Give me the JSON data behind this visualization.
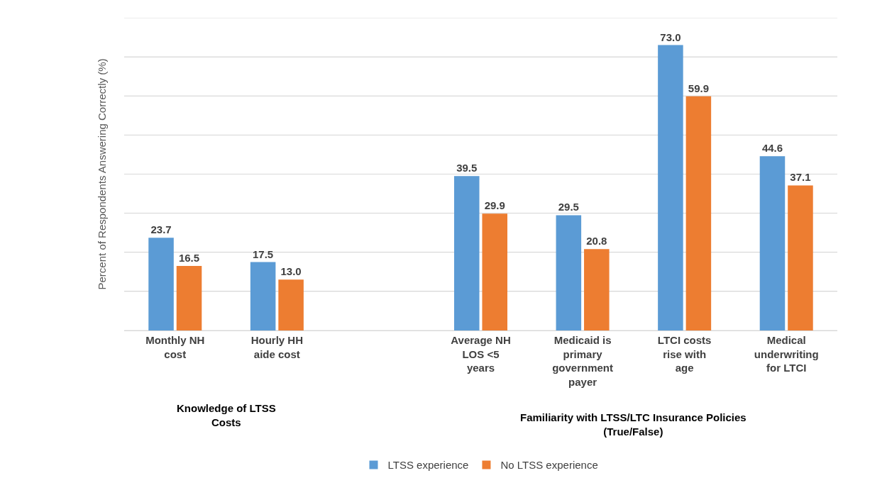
{
  "chart_data": {
    "type": "bar",
    "ylabel": "Percent of Respondents Answering Correctly (%)",
    "categories": [
      "Monthly NH cost",
      "Hourly HH aide cost",
      null,
      "Average NH LOS <5 years",
      "Medicaid is primary government payer",
      "LTCI costs rise with age",
      "Medical underwriting for LTCI"
    ],
    "series": [
      {
        "name": "LTSS experience",
        "color": "#5b9bd5",
        "values": [
          23.7,
          17.5,
          null,
          39.5,
          29.5,
          73.0,
          44.6
        ],
        "value_labels": [
          "23.7",
          "17.5",
          null,
          "39.5",
          "29.5",
          "73.0",
          "44.6"
        ]
      },
      {
        "name": "No LTSS experience",
        "color": "#ed7d31",
        "values": [
          16.5,
          13.0,
          null,
          29.9,
          20.8,
          59.9,
          37.1
        ],
        "value_labels": [
          "16.5",
          "13.0",
          null,
          "29.9",
          "20.8",
          "59.9",
          "37.1"
        ]
      }
    ],
    "annotations": [
      "Knowledge of LTSS Costs",
      "Familiarity with LTSS/LTC Insurance Policies (True/False)"
    ],
    "ylim": [
      0,
      80
    ],
    "yticks": [
      {
        "value": 0,
        "label": null
      },
      {
        "value": 10,
        "label": null
      },
      {
        "value": 20,
        "label": null
      },
      {
        "value": 30,
        "label": null
      },
      {
        "value": 40,
        "label": null
      },
      {
        "value": 50,
        "label": null
      },
      {
        "value": 60,
        "label": null
      },
      {
        "value": 70,
        "label": null
      },
      {
        "value": 80,
        "label": null
      }
    ],
    "tick_labels": "x",
    "grid": "y",
    "legend": "bottom"
  }
}
